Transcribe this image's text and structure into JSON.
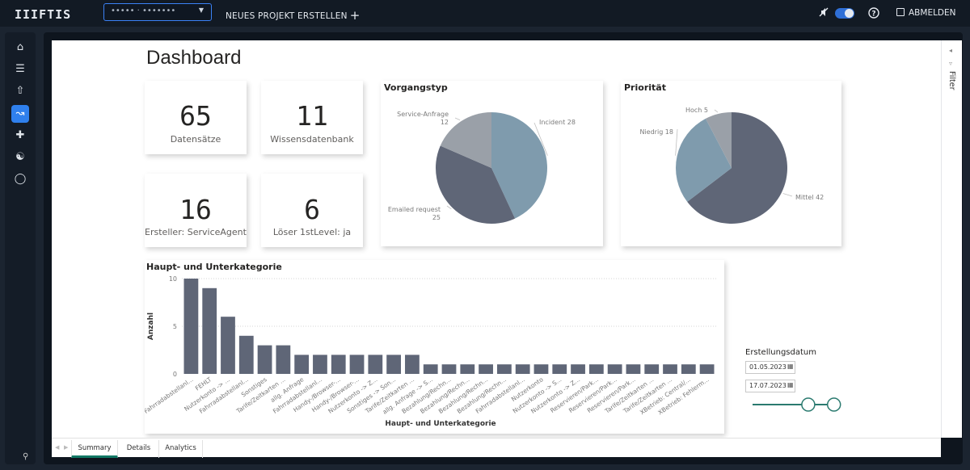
{
  "topbar": {
    "logo": "IIIFTIS",
    "project_select": "••••• · •••••••",
    "new_project": "NEUES PROJEKT ERSTELLEN",
    "logout": "ABMELDEN"
  },
  "page": {
    "title": "Dashboard"
  },
  "kpis": [
    {
      "value": "65",
      "label": "Datensätze"
    },
    {
      "value": "11",
      "label": "Wissensdatenbank"
    },
    {
      "value": "16",
      "label": "Ersteller: ServiceAgent"
    },
    {
      "value": "6",
      "label": "Löser 1stLevel: ja"
    }
  ],
  "filter_pane": {
    "label": "Filter"
  },
  "chart_data": [
    {
      "type": "pie",
      "title": "Vorgangstyp",
      "slices": [
        {
          "label": "Incident",
          "value": 28,
          "color": "#7f9bad"
        },
        {
          "label": "Emailed request",
          "value": 25,
          "color": "#5f6677"
        },
        {
          "label": "Service-Anfrage",
          "value": 12,
          "color": "#9aa0a8"
        }
      ]
    },
    {
      "type": "pie",
      "title": "Priorität",
      "slices": [
        {
          "label": "Mittel",
          "value": 42,
          "color": "#5f6677"
        },
        {
          "label": "Niedrig",
          "value": 18,
          "color": "#7f9bad"
        },
        {
          "label": "Hoch",
          "value": 5,
          "color": "#9aa0a8"
        }
      ]
    },
    {
      "type": "bar",
      "title": "Haupt- und Unterkategorie",
      "xlabel": "Haupt- und Unterkategorie",
      "ylabel": "Anzahl",
      "ylim": [
        0,
        10
      ],
      "yticks": [
        0,
        5,
        10
      ],
      "color": "#5f6677",
      "categories": [
        "Fahrradabstellanl...",
        "FEHLT",
        "Nutzerkonto -> ...",
        "Fahrradabstellanl...",
        "Sonstiges",
        "Tarife/Zeitkarten ...",
        "allg. Anfrage",
        "Fahrradabstellanl...",
        "Handy-/Browser-...",
        "Handy-/Browser-...",
        "Nutzerkonto -> Z...",
        "Sonstiges -> Son...",
        "Tarife/Zeitkarten ...",
        "allg. Anfrage -> S...",
        "Bezahlung/Rechn...",
        "Bezahlung/Rechn...",
        "Bezahlung/Rechn...",
        "Bezahlung/Rechn...",
        "Fahrradabstellanl...",
        "Nutzerkonto",
        "Nutzerkonto -> S...",
        "Nutzerkonto -> Z...",
        "Reservieren/Park...",
        "Reservieren/Park...",
        "Reservieren/Park...",
        "Tarife/Zeitkarten ...",
        "Tarife/Zeitkarten ...",
        "XBetrieb: Central/...",
        "XBetrieb: Fehlerm..."
      ],
      "values": [
        10,
        9,
        6,
        4,
        3,
        3,
        2,
        2,
        2,
        2,
        2,
        2,
        2,
        1,
        1,
        1,
        1,
        1,
        1,
        1,
        1,
        1,
        1,
        1,
        1,
        1,
        1,
        1,
        1
      ]
    }
  ],
  "slicer": {
    "title": "Erstellungsdatum",
    "start": "01.05.2023",
    "end": "17.07.2023",
    "range_fraction": [
      0.65,
      0.95
    ]
  },
  "tabs": [
    "Summary",
    "Details",
    "Analytics"
  ],
  "colors": {
    "accent": "#2f80ed",
    "tab_active": "#117865",
    "slider": "#2a7a6f"
  }
}
